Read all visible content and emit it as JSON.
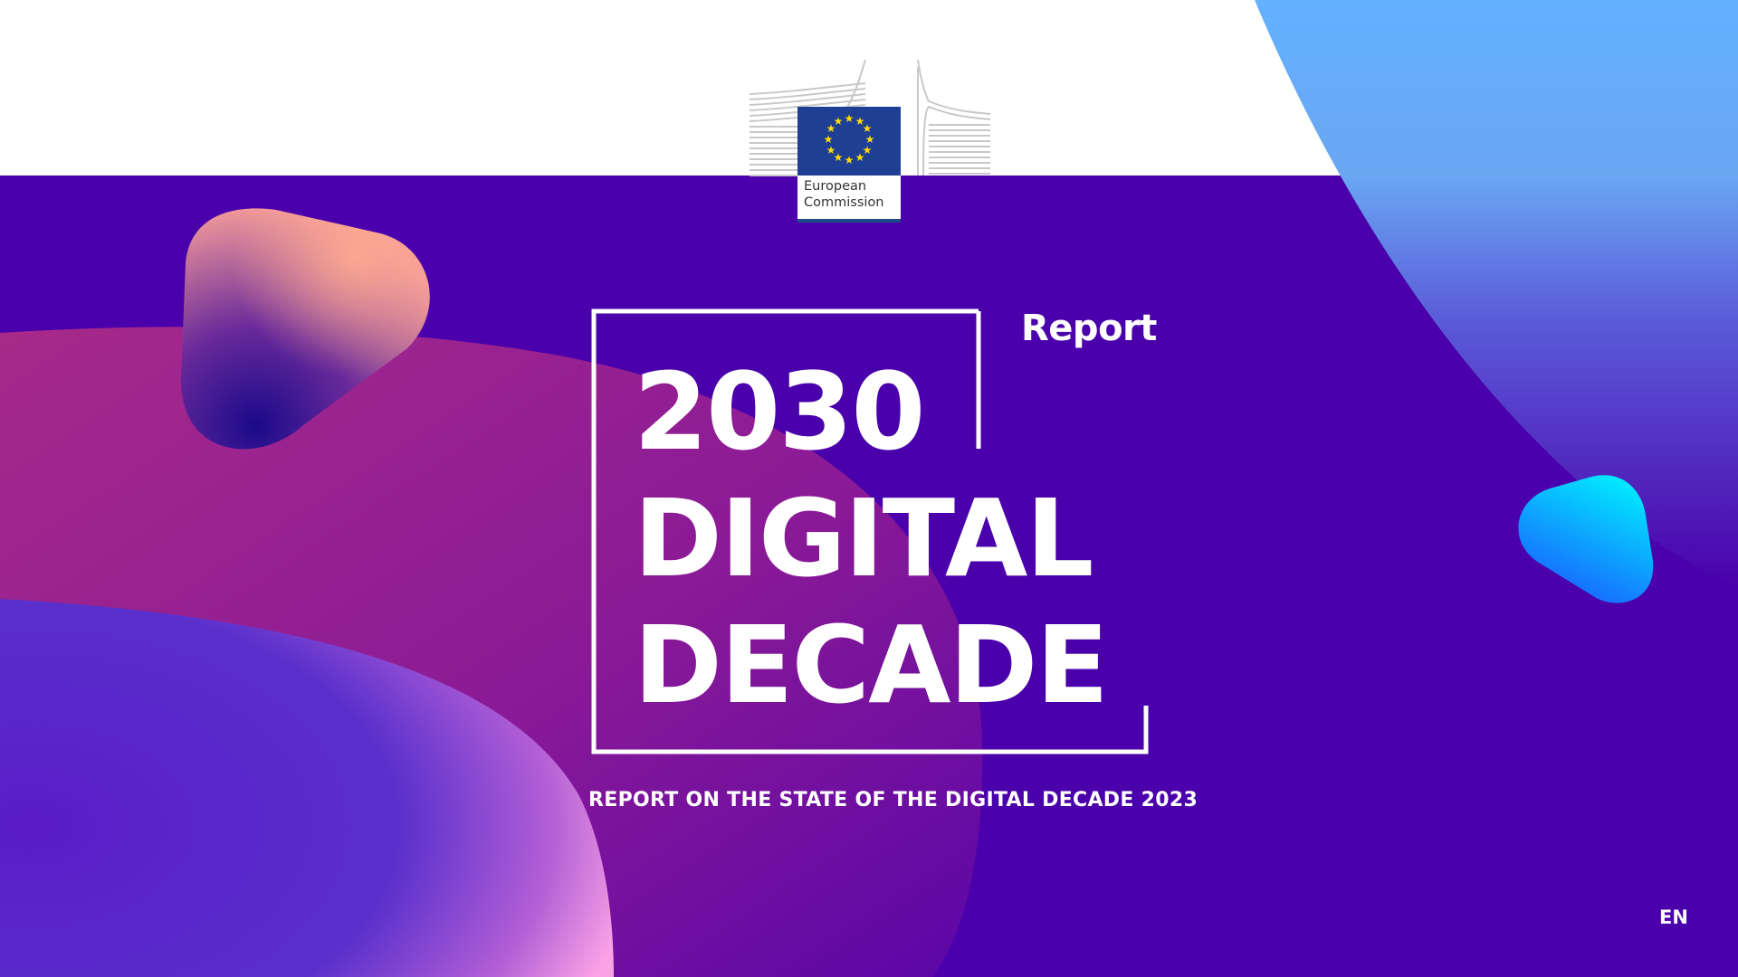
{
  "publisher": {
    "logo_text": "European Commission",
    "line1": "European",
    "line2": "Commission"
  },
  "report_label": "Report",
  "title": {
    "line1": "2030",
    "line2": "DIGITAL",
    "line3": "DECADE"
  },
  "subtitle": "REPORT ON THE STATE OF THE DIGITAL DECADE 2023",
  "language": "EN",
  "colors": {
    "background": "#4a00aa",
    "top_band": "#ffffff",
    "eu_blue": "#1e3f94",
    "eu_star": "#ffdd00",
    "sky_blue": "#63b1ff",
    "cyan": "#00e8ff"
  }
}
